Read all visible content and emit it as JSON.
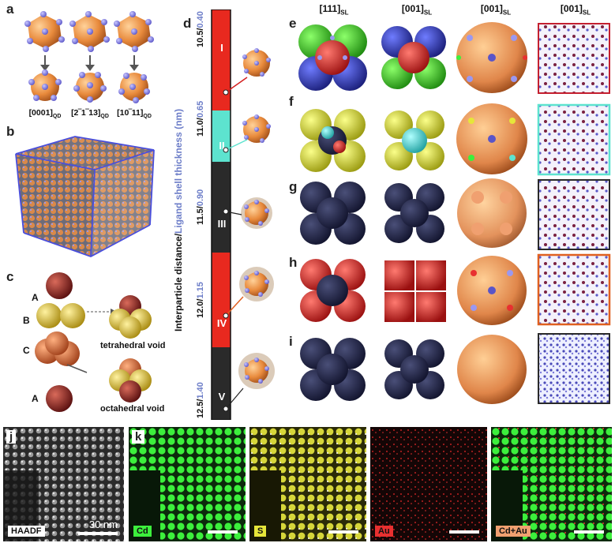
{
  "panel_labels": [
    "a",
    "b",
    "c",
    "d",
    "e",
    "f",
    "g",
    "h",
    "i",
    "j",
    "k"
  ],
  "panel_a": {
    "directions": [
      {
        "main": "[0001]",
        "sub": "QD"
      },
      {
        "main": "[2‾1‾13]",
        "sub": "QD"
      },
      {
        "main": "[10‾11]",
        "sub": "QD"
      }
    ]
  },
  "panel_c": {
    "atoms": [
      "A",
      "B",
      "C",
      "A"
    ],
    "voids": [
      "tetrahedral void",
      "octahedral void"
    ]
  },
  "panel_d": {
    "axis_title_black": "Interparticle distance/",
    "axis_title_blue": "Ligand shell thickness (nm)",
    "ticks": [
      {
        "dist": "10.5/",
        "shell": "0.40"
      },
      {
        "dist": "11.0/",
        "shell": "0.65"
      },
      {
        "dist": "11.5/",
        "shell": "0.90"
      },
      {
        "dist": "12.0/",
        "shell": "1.15"
      },
      {
        "dist": "12.5/",
        "shell": "1.40"
      }
    ],
    "phases": [
      "I",
      "II",
      "III",
      "IV",
      "V"
    ],
    "colors": {
      "phase_I": "#e8291f",
      "phase_II": "#5de3cf",
      "phase_III": "#2a2a2a",
      "phase_IV": "#e8291f",
      "phase_V": "#2a2a2a"
    }
  },
  "column_headers": [
    {
      "main": "[111]",
      "sub": "SL"
    },
    {
      "main": "[001]",
      "sub": "SL"
    },
    {
      "main": "[001]",
      "sub": "SL"
    },
    {
      "main": "[001]",
      "sub": "SL"
    }
  ],
  "row_labels": [
    "e",
    "f",
    "g",
    "h",
    "i"
  ],
  "panel_j": {
    "tag": "HAADF",
    "scale": "30 nm"
  },
  "panel_k": {
    "tags": [
      "Cd",
      "S",
      "Au",
      "Cd+Au"
    ],
    "tag_colors": [
      "#3cf03c",
      "#e6e63a",
      "#e83030",
      "#f0a070"
    ]
  }
}
